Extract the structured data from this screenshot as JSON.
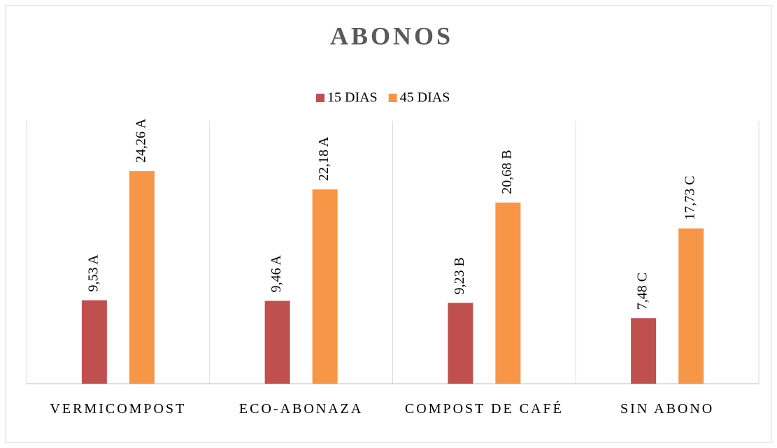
{
  "chart_data": {
    "type": "bar",
    "title": "ABONOS",
    "categories": [
      "VERMICOMPOST",
      "ECO-ABONAZA",
      "COMPOST DE CAFÉ",
      "SIN ABONO"
    ],
    "series": [
      {
        "name": "15 DIAS",
        "color": "#c0504d",
        "values": [
          9.53,
          9.46,
          9.23,
          7.48
        ],
        "value_labels": [
          "9,53 A",
          "9,46 A",
          "9,23 B",
          "7,48 C"
        ]
      },
      {
        "name": "45 DIAS",
        "color": "#f79646",
        "values": [
          24.26,
          22.18,
          20.68,
          17.73
        ],
        "value_labels": [
          "24,26 A",
          "22,18 A",
          "20,68 B",
          "17,73 C"
        ]
      }
    ],
    "ylim": [
      0,
      30
    ],
    "legend": "top"
  }
}
